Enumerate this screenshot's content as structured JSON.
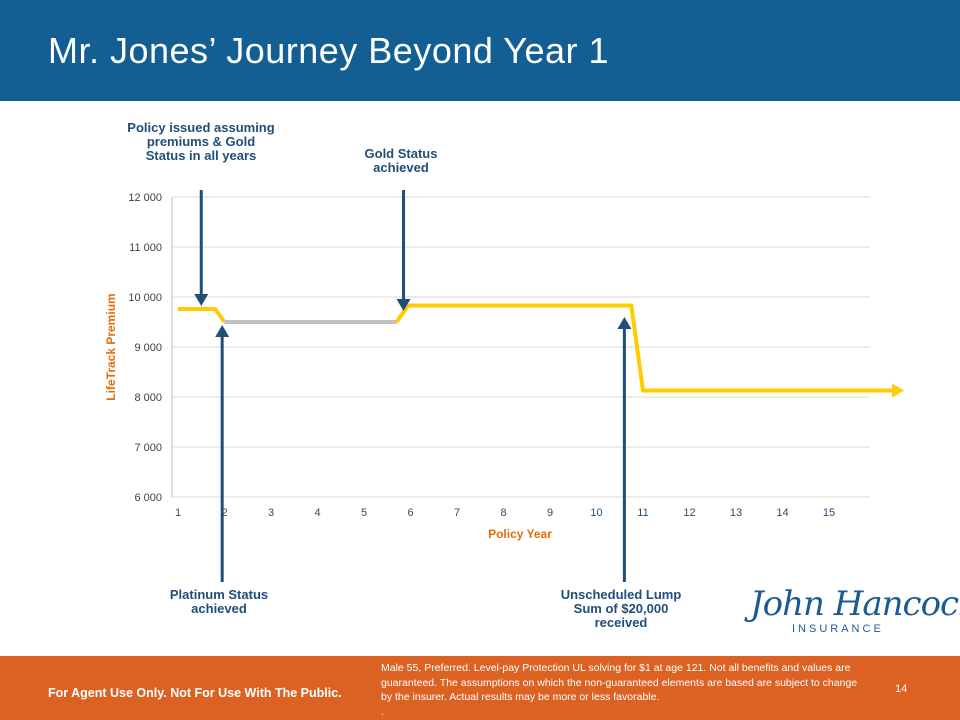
{
  "header": {
    "title": "Mr. Jones’ Journey Beyond Year 1"
  },
  "callouts": {
    "policy_issued": "Policy issued assuming premiums & Gold Status in all years",
    "gold_status": "Gold Status achieved",
    "platinum_status": "Platinum Status achieved",
    "lump_sum": "Unscheduled Lump Sum of $20,000 received"
  },
  "chart_data": {
    "type": "line",
    "xlabel": "Policy Year",
    "ylabel": "LifeTrack  Premium",
    "ylim": [
      6000,
      12000
    ],
    "xlim": [
      1,
      16.5
    ],
    "x_ticks": [
      1,
      2,
      3,
      4,
      5,
      6,
      7,
      8,
      9,
      10,
      11,
      12,
      13,
      14,
      15
    ],
    "y_ticks": [
      6000,
      7000,
      8000,
      9000,
      10000,
      11000,
      12000
    ],
    "y_tick_labels": [
      "6 000",
      "7 000",
      "8 000",
      "9 000",
      "10 000",
      "11 000",
      "12 000"
    ],
    "grid": "horizontal",
    "series": [
      {
        "color": "#ffcc00",
        "x": [
          1,
          1.8,
          2.0
        ],
        "y": [
          9760,
          9760,
          9500
        ]
      },
      {
        "color": "#bfbfbf",
        "x": [
          2.0,
          5.7
        ],
        "y": [
          9500,
          9500
        ]
      },
      {
        "color": "#ffcc00",
        "x": [
          5.7,
          5.95,
          10.75,
          11.0,
          16.4
        ],
        "y": [
          9500,
          9830,
          9830,
          8130,
          8130
        ]
      }
    ],
    "annotations": [
      {
        "label": "policy_issued",
        "x": 1.5,
        "y": 9760,
        "direction": "down"
      },
      {
        "label": "platinum_status",
        "x": 1.95,
        "y": 9500,
        "direction": "up"
      },
      {
        "label": "gold_status",
        "x": 5.85,
        "y": 9660,
        "direction": "down"
      },
      {
        "label": "lump_sum",
        "x": 10.6,
        "y": 9660,
        "direction": "up"
      }
    ]
  },
  "brand": {
    "logo_script": "John Hancock.",
    "logo_sub": "INSURANCE"
  },
  "footer": {
    "left_text": "For Agent Use Only. Not For Use With The Public.",
    "disclaimer": "Male 55, Preferred. Level-pay Protection UL solving for $1 at age 121. Not all benefits and values are guaranteed.  The assumptions on which the non-guaranteed elements are based are subject to change by the insurer.  Actual results may be more or less favorable.",
    "disclaimer_tail": ".",
    "page_number": "14"
  }
}
